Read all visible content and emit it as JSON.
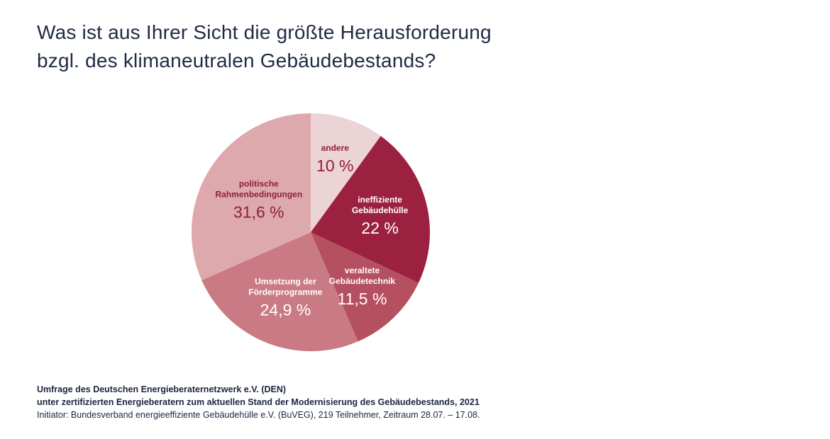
{
  "title": {
    "line1": "Was ist aus Ihrer Sicht die größte Herausforderung",
    "line2": "bzgl. des klimaneutralen Gebäudebestands?"
  },
  "chart_data": {
    "type": "pie",
    "start": "12 o'clock, clockwise",
    "slices": [
      {
        "label_lines": [
          "andere"
        ],
        "value": 10,
        "value_text": "10 %",
        "color": "#ecd3d5",
        "label_color": "#8e1f3c",
        "value_color": "#8e1f3c"
      },
      {
        "label_lines": [
          "ineffiziente",
          "Gebäudehülle"
        ],
        "value": 22,
        "value_text": "22 %",
        "color": "#9c2140",
        "label_color": "#ffffff",
        "value_color": "#ffffff"
      },
      {
        "label_lines": [
          "veraltete",
          "Gebäudetechnik"
        ],
        "value": 11.5,
        "value_text": "11,5 %",
        "color": "#b4505f",
        "label_color": "#ffffff",
        "value_color": "#ffffff"
      },
      {
        "label_lines": [
          "Umsetzung der",
          "Förderprogramme"
        ],
        "value": 24.9,
        "value_text": "24,9 %",
        "color": "#c97a83",
        "label_color": "#ffffff",
        "value_color": "#ffffff"
      },
      {
        "label_lines": [
          "politische",
          "Rahmenbedingungen"
        ],
        "value": 31.6,
        "value_text": "31,6 %",
        "color": "#dea9ad",
        "label_color": "#8e1f3c",
        "value_color": "#8e1f3c"
      }
    ]
  },
  "footer": {
    "line1": "Umfrage des Deutschen Energieberaternetzwerk e.V. (DEN)",
    "line2": "unter zertifizierten Energieberatern zum aktuellen Stand der Modernisierung des Gebäudebestands, 2021",
    "line3": "Initiator: Bundesverband energieeffiziente Gebäudehülle e.V. (BuVEG), 219 Teilnehmer, Zeitraum 28.07. – 17.08."
  }
}
